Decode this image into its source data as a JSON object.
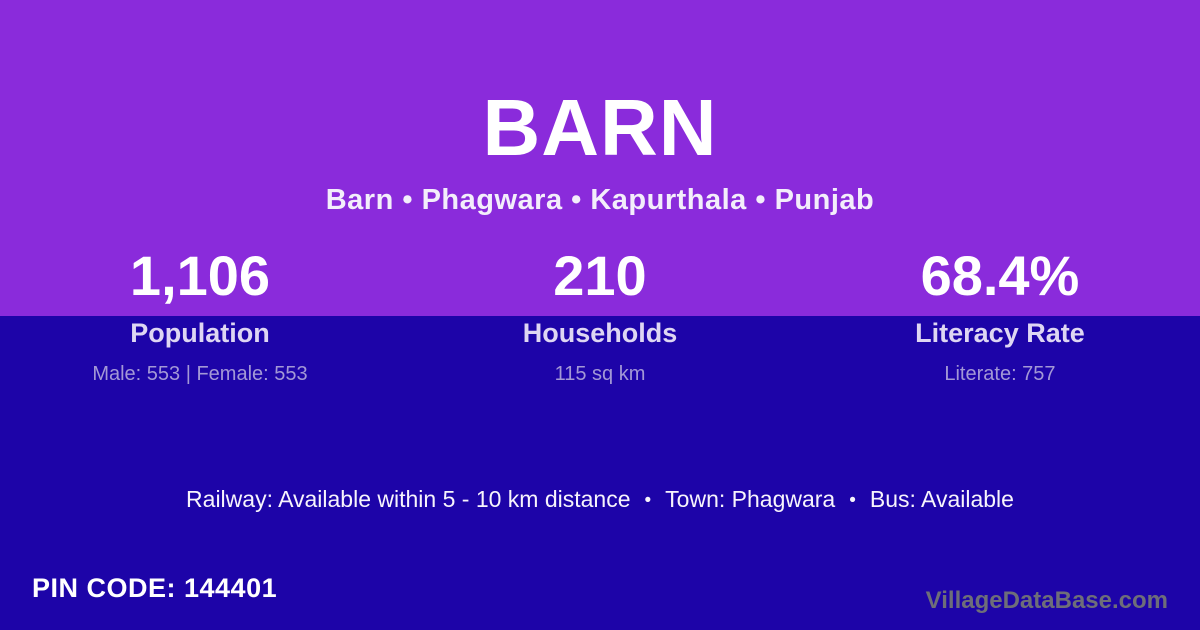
{
  "header": {
    "title": "BARN",
    "breadcrumb": "Barn • Phagwara • Kapurthala • Punjab"
  },
  "stats": [
    {
      "value": "1,106",
      "label": "Population",
      "detail": "Male: 553 | Female: 553"
    },
    {
      "value": "210",
      "label": "Households",
      "detail": "115 sq km"
    },
    {
      "value": "68.4%",
      "label": "Literacy Rate",
      "detail": "Literate: 757"
    }
  ],
  "amenities": {
    "items": [
      "Railway: Available within 5 - 10 km distance",
      "Town: Phagwara",
      "Bus: Available"
    ],
    "separator": "•"
  },
  "pin_code_text": "PIN CODE: 144401",
  "watermark": "VillageDataBase.com",
  "colors": {
    "top_background": "#8a2bdb",
    "bottom_background": "#1d04a8",
    "primary_text": "#ffffff",
    "label_text": "#ded6f3",
    "detail_text": "#a398d6",
    "watermark_text": "#6e6e79"
  }
}
